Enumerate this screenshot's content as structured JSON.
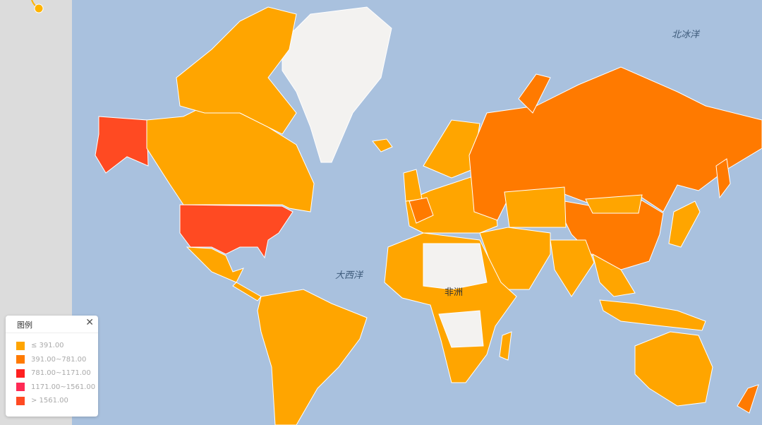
{
  "chart_data": {
    "type": "choropleth",
    "legend": {
      "title": "图例",
      "close_icon": "close-icon",
      "items": [
        {
          "label": "≤ 391.00",
          "color": "#ffa500"
        },
        {
          "label": "391.00~781.00",
          "color": "#ff7a00"
        },
        {
          "label": "781.00~1171.00",
          "color": "#ff2020"
        },
        {
          "label": "1171.00~1561.00",
          "color": "#ff2a55"
        },
        {
          "label": "> 1561.00",
          "color": "#ff4a22"
        }
      ]
    },
    "no_data_color": "#f3f2f0",
    "ocean_color": "#a9c1de",
    "region_bins": {
      "usa": 4,
      "alaska": 4,
      "canada": 0,
      "canada_islands": 0,
      "mexico": 0,
      "central_america": 0,
      "south_america": 0,
      "europe": 0,
      "scandinavia": 0,
      "uk": 0,
      "iceland": 0,
      "france": 1,
      "russia": 1,
      "arctic_islands_ru": 1,
      "far_east_islands": 1,
      "china": 1,
      "mongolia": 0,
      "central_asia": 0,
      "middle_east": 0,
      "india": 0,
      "se_asia": 0,
      "indonesia": 0,
      "japan": 0,
      "australia": 0,
      "new_zealand": 1,
      "africa": 0,
      "madagascar": 0
    },
    "labels": {
      "arctic": "北冰洋",
      "atlantic": "大西洋",
      "africa": "非洲"
    }
  }
}
